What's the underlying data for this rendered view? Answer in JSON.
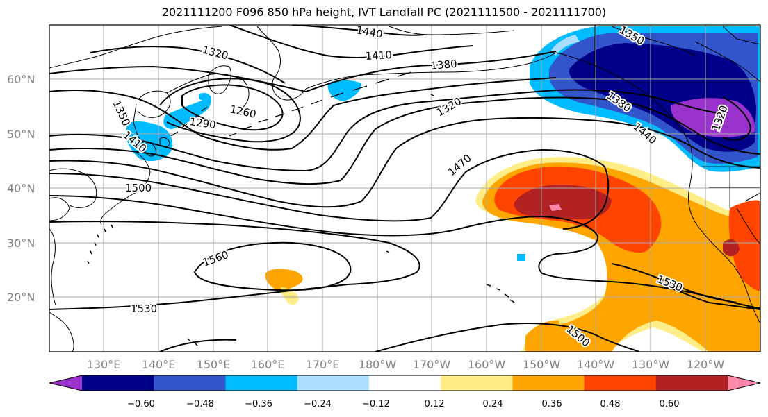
{
  "title": "2021111200 F096 850 hPa height, IVT Landfall PC (2021111500 - 2021111700)",
  "lat_labels": [
    "60°N",
    "50°N",
    "40°N",
    "30°N",
    "20°N"
  ],
  "lon_labels": [
    "130°E",
    "140°E",
    "150°E",
    "160°E",
    "170°E",
    "180°W",
    "170°W",
    "160°W",
    "150°W",
    "140°W",
    "130°W",
    "120°W"
  ],
  "contour_labels": [
    "1440",
    "1410",
    "1380",
    "1350",
    "1320",
    "1290",
    "1260",
    "1350",
    "1410",
    "1320",
    "1470",
    "1500",
    "1560",
    "1530",
    "1530",
    "1500",
    "1380",
    "1440",
    "1320"
  ],
  "colorbar": {
    "labels": [
      "−0.60",
      "−0.48",
      "−0.36",
      "−0.24",
      "−0.12",
      "0.12",
      "0.24",
      "0.36",
      "0.48",
      "0.60"
    ],
    "colors": [
      "#9933cc",
      "#000088",
      "#3355cc",
      "#00bbff",
      "#aaddff",
      "#ffffff",
      "#ffee88",
      "#ffa500",
      "#ff4400",
      "#b22222",
      "#ff88aa"
    ]
  }
}
